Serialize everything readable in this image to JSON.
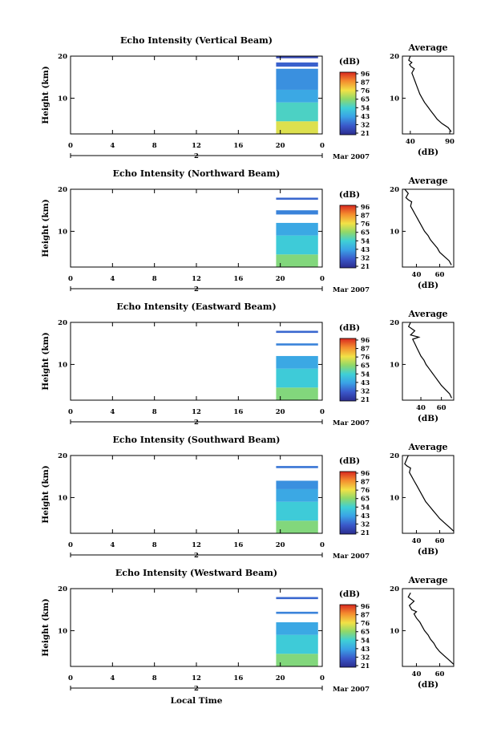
{
  "chart_data": [
    {
      "type": "heatmap",
      "title": "Echo Intensity (Vertical Beam)",
      "ylabel": "Height (km)",
      "xticks": [
        "0",
        "4",
        "8",
        "12",
        "16",
        "20",
        "0"
      ],
      "date_marker": "2",
      "date_label": "Mar 2007",
      "xlim": [
        0,
        24
      ],
      "ylim": [
        1.5,
        20
      ],
      "yticks": [
        "20",
        "10"
      ],
      "data_time_range": [
        19.6,
        23.6
      ],
      "colorbar": {
        "label": "(dB)",
        "ticks": [
          "96",
          "87",
          "76",
          "65",
          "54",
          "43",
          "32",
          "21"
        ],
        "range": [
          21,
          96
        ]
      },
      "layers": [
        {
          "height_range": [
            1.5,
            4.5
          ],
          "db": 72
        },
        {
          "height_range": [
            4.5,
            9.0
          ],
          "db": 55
        },
        {
          "height_range": [
            9.0,
            12.0
          ],
          "db": 44
        },
        {
          "height_range": [
            12.0,
            17.0
          ],
          "db": 40
        },
        {
          "height_range": [
            17.5,
            18.5
          ],
          "db": 33
        },
        {
          "height_range": [
            19.5,
            20.0
          ],
          "db": 28
        }
      ],
      "profile": {
        "title": "Average",
        "xlabel": "(dB)",
        "xticks": [
          "40",
          "90"
        ],
        "xlim": [
          30,
          95
        ],
        "yticks": [
          "20",
          "10"
        ],
        "ylim": [
          1.5,
          20
        ],
        "x": [
          92,
          88,
          80,
          74,
          70,
          66,
          62,
          58,
          55,
          52,
          50,
          48,
          46,
          44,
          42,
          45,
          41,
          39,
          42,
          38,
          40
        ],
        "y": [
          2,
          3,
          4,
          5,
          6,
          7,
          8,
          9,
          10,
          11,
          12,
          13,
          14,
          15,
          16,
          17,
          17.5,
          18,
          18.5,
          19,
          20
        ]
      }
    },
    {
      "type": "heatmap",
      "title": "Echo Intensity (Northward Beam)",
      "ylabel": "Height (km)",
      "xticks": [
        "0",
        "4",
        "8",
        "12",
        "16",
        "20",
        "0"
      ],
      "date_marker": "2",
      "date_label": "Mar 2007",
      "xlim": [
        0,
        24
      ],
      "ylim": [
        1.5,
        20
      ],
      "yticks": [
        "20",
        "10"
      ],
      "data_time_range": [
        19.6,
        23.6
      ],
      "colorbar": {
        "label": "(dB)",
        "ticks": [
          "96",
          "87",
          "76",
          "65",
          "54",
          "43",
          "32",
          "21"
        ],
        "range": [
          21,
          96
        ]
      },
      "layers": [
        {
          "height_range": [
            1.5,
            4.5
          ],
          "db": 62
        },
        {
          "height_range": [
            4.5,
            9.0
          ],
          "db": 52
        },
        {
          "height_range": [
            9.0,
            12.0
          ],
          "db": 44
        },
        {
          "height_range": [
            14.0,
            15.0
          ],
          "db": 38
        },
        {
          "height_range": [
            17.5,
            18.0
          ],
          "db": 34
        }
      ],
      "profile": {
        "title": "Average",
        "xlabel": "(dB)",
        "xticks": [
          "40",
          "60"
        ],
        "xlim": [
          28,
          72
        ],
        "yticks": [
          "20",
          "10"
        ],
        "ylim": [
          1.5,
          20
        ],
        "x": [
          70,
          68,
          64,
          60,
          58,
          55,
          52,
          50,
          47,
          45,
          43,
          41,
          39,
          37,
          35,
          36,
          33,
          31,
          33,
          30
        ],
        "y": [
          2,
          3,
          4,
          5,
          6,
          7,
          8,
          9,
          10,
          11,
          12,
          13,
          14,
          15,
          16,
          17,
          17.5,
          18,
          19,
          20
        ]
      }
    },
    {
      "type": "heatmap",
      "title": "Echo Intensity (Eastward Beam)",
      "ylabel": "Height (km)",
      "xticks": [
        "0",
        "4",
        "8",
        "12",
        "16",
        "20",
        "0"
      ],
      "date_marker": "2",
      "date_label": "Mar 2007",
      "xlim": [
        0,
        24
      ],
      "ylim": [
        1.5,
        20
      ],
      "yticks": [
        "20",
        "10"
      ],
      "data_time_range": [
        19.6,
        23.6
      ],
      "colorbar": {
        "label": "(dB)",
        "ticks": [
          "96",
          "87",
          "76",
          "65",
          "54",
          "43",
          "32",
          "21"
        ],
        "range": [
          21,
          96
        ]
      },
      "layers": [
        {
          "height_range": [
            1.5,
            4.5
          ],
          "db": 62
        },
        {
          "height_range": [
            4.5,
            9.0
          ],
          "db": 52
        },
        {
          "height_range": [
            9.0,
            12.0
          ],
          "db": 44
        },
        {
          "height_range": [
            14.5,
            15.0
          ],
          "db": 38
        },
        {
          "height_range": [
            17.5,
            18.0
          ],
          "db": 34
        }
      ],
      "profile": {
        "title": "Average",
        "xlabel": "(dB)",
        "xticks": [
          "40",
          "60"
        ],
        "xlim": [
          22,
          72
        ],
        "yticks": [
          "20",
          "10"
        ],
        "ylim": [
          1.5,
          20
        ],
        "x": [
          70,
          68,
          64,
          60,
          57,
          54,
          51,
          48,
          45,
          43,
          40,
          38,
          36,
          34,
          32,
          38,
          30,
          34,
          28,
          30
        ],
        "y": [
          2,
          3,
          4,
          5,
          6,
          7,
          8,
          9,
          10,
          11,
          12,
          13,
          14,
          15,
          16,
          16.5,
          17,
          18,
          19,
          20
        ]
      }
    },
    {
      "type": "heatmap",
      "title": "Echo Intensity (Southward Beam)",
      "ylabel": "Height (km)",
      "xticks": [
        "0",
        "4",
        "8",
        "12",
        "16",
        "20",
        "0"
      ],
      "date_marker": "2",
      "date_label": "Mar 2007",
      "xlim": [
        0,
        24
      ],
      "ylim": [
        1.5,
        20
      ],
      "yticks": [
        "20",
        "10"
      ],
      "data_time_range": [
        19.6,
        23.6
      ],
      "colorbar": {
        "label": "(dB)",
        "ticks": [
          "96",
          "87",
          "76",
          "65",
          "54",
          "43",
          "32",
          "21"
        ],
        "range": [
          21,
          96
        ]
      },
      "layers": [
        {
          "height_range": [
            1.5,
            4.5
          ],
          "db": 62
        },
        {
          "height_range": [
            4.5,
            9.0
          ],
          "db": 52
        },
        {
          "height_range": [
            9.0,
            12.0
          ],
          "db": 44
        },
        {
          "height_range": [
            12.0,
            14.0
          ],
          "db": 40
        },
        {
          "height_range": [
            17.0,
            17.5
          ],
          "db": 36
        }
      ],
      "profile": {
        "title": "Average",
        "xlabel": "(dB)",
        "xticks": [
          "40",
          "60"
        ],
        "xlim": [
          28,
          72
        ],
        "yticks": [
          "20",
          "10"
        ],
        "ylim": [
          1.5,
          20
        ],
        "x": [
          72,
          68,
          64,
          60,
          57,
          54,
          51,
          48,
          46,
          44,
          42,
          40,
          38,
          36,
          34,
          35,
          32,
          30,
          33
        ],
        "y": [
          2,
          3,
          4,
          5,
          6,
          7,
          8,
          9,
          10,
          11,
          12,
          13,
          14,
          15,
          16,
          17,
          17.5,
          18,
          20
        ]
      }
    },
    {
      "type": "heatmap",
      "title": "Echo Intensity (Westward Beam)",
      "ylabel": "Height (km)",
      "xticks": [
        "0",
        "4",
        "8",
        "12",
        "16",
        "20",
        "0"
      ],
      "date_marker": "2",
      "date_label": "Mar 2007",
      "xlabel": "Local Time",
      "xlim": [
        0,
        24
      ],
      "ylim": [
        1.5,
        20
      ],
      "yticks": [
        "20",
        "10"
      ],
      "data_time_range": [
        19.6,
        23.6
      ],
      "colorbar": {
        "label": "(dB)",
        "ticks": [
          "96",
          "87",
          "76",
          "65",
          "54",
          "43",
          "32",
          "21"
        ],
        "range": [
          21,
          96
        ]
      },
      "layers": [
        {
          "height_range": [
            1.5,
            4.5
          ],
          "db": 62
        },
        {
          "height_range": [
            4.5,
            9.0
          ],
          "db": 52
        },
        {
          "height_range": [
            9.0,
            12.0
          ],
          "db": 44
        },
        {
          "height_range": [
            14.0,
            14.5
          ],
          "db": 38
        },
        {
          "height_range": [
            17.5,
            18.0
          ],
          "db": 34
        }
      ],
      "profile": {
        "title": "Average",
        "xlabel": "(dB)",
        "xticks": [
          "40",
          "60"
        ],
        "xlim": [
          28,
          72
        ],
        "yticks": [
          "20",
          "10"
        ],
        "ylim": [
          1.5,
          20
        ],
        "x": [
          72,
          68,
          64,
          60,
          57,
          55,
          52,
          50,
          47,
          45,
          43,
          40,
          38,
          40,
          36,
          34,
          38,
          33,
          35
        ],
        "y": [
          2,
          3,
          4,
          5,
          6,
          7,
          8,
          9,
          10,
          11,
          12,
          13,
          14,
          14.5,
          15,
          16,
          17,
          18,
          19
        ]
      }
    }
  ]
}
